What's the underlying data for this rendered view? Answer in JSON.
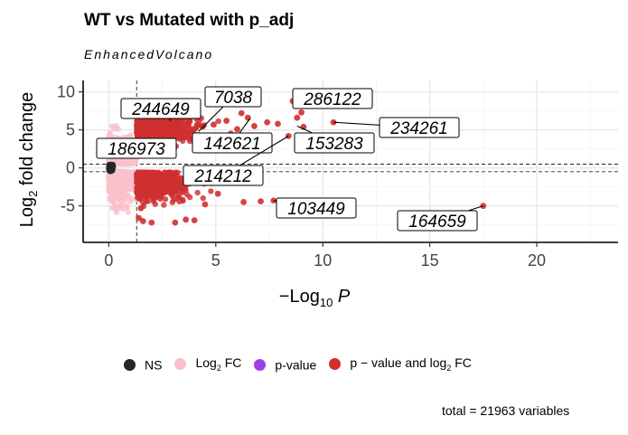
{
  "title": "WT vs Mutated with p_adj",
  "subtitle": "EnhancedVolcano",
  "caption": "total = 21963 variables",
  "legend": {
    "items": [
      {
        "label": "NS",
        "sub": "",
        "suffix": "",
        "color": "#262626"
      },
      {
        "label": "Log",
        "sub": "2",
        "suffix": " FC",
        "color": "#f9c0cb"
      },
      {
        "label": "p-value",
        "sub": "",
        "suffix": "",
        "color": "#9f3ee6"
      },
      {
        "label": "p − value and log",
        "sub": "2",
        "suffix": " FC",
        "color": "#d02f2f"
      }
    ]
  },
  "chart_data": {
    "type": "scatter",
    "xlabel": {
      "text": "−Log",
      "sub": "10",
      "suffix": " P"
    },
    "ylabel": {
      "text": "Log",
      "sub": "2",
      "suffix": " fold change"
    },
    "xlim": [
      -1.2,
      23.8
    ],
    "ylim": [
      -9.8,
      11.5
    ],
    "xticks": [
      0,
      5,
      10,
      15,
      20
    ],
    "yticks": [
      -5,
      0,
      5,
      10
    ],
    "grid": true,
    "p_cutoff": 1.3,
    "fc_cutoff": 0.5,
    "colors": {
      "NS": "#262626",
      "FC": "#f9c0cb",
      "P": "#9f3ee6",
      "FC_P": "#d02f2f"
    },
    "labels": [
      {
        "text": "244649",
        "x": 2.9,
        "y": 6.2
      },
      {
        "text": "7038",
        "x": 4.2,
        "y": 4.8
      },
      {
        "text": "286122",
        "x": 8.6,
        "y": 8.8
      },
      {
        "text": "234261",
        "x": 10.5,
        "y": 6.0
      },
      {
        "text": "186973",
        "x": 1.5,
        "y": 1.5
      },
      {
        "text": "142621",
        "x": 6.6,
        "y": 6.5
      },
      {
        "text": "153283",
        "x": 8.8,
        "y": 5.5
      },
      {
        "text": "214212",
        "x": 8.4,
        "y": 4.2
      },
      {
        "text": "103449",
        "x": 7.7,
        "y": -4.3
      },
      {
        "text": "164659",
        "x": 17.5,
        "y": -5.0
      }
    ],
    "points_fc_p": [
      [
        8.6,
        8.8
      ],
      [
        9.0,
        7.3
      ],
      [
        10.5,
        6.0
      ],
      [
        8.8,
        6.6
      ],
      [
        8.4,
        4.2
      ],
      [
        9.1,
        5.4
      ],
      [
        7.7,
        -4.3
      ],
      [
        7.1,
        -4.4
      ],
      [
        6.3,
        -4.5
      ],
      [
        17.5,
        -5.0
      ],
      [
        4.5,
        -4.8
      ],
      [
        3.6,
        -6.8
      ],
      [
        3.1,
        -7.2
      ],
      [
        2.0,
        -7.2
      ],
      [
        4.0,
        -6.9
      ],
      [
        1.5,
        -5.3
      ],
      [
        1.4,
        -6.6
      ],
      [
        1.6,
        -7.0
      ],
      [
        5.1,
        -3.4
      ],
      [
        4.3,
        -1.1
      ],
      [
        4.8,
        -2.0
      ],
      [
        5.5,
        6.2
      ],
      [
        6.5,
        6.6
      ],
      [
        7.4,
        6.0
      ],
      [
        6.2,
        7.2
      ],
      [
        7.9,
        5.8
      ],
      [
        6.0,
        5.1
      ],
      [
        5.7,
        4.5
      ],
      [
        4.9,
        5.7
      ],
      [
        6.8,
        5.5
      ],
      [
        2.0,
        3.5
      ],
      [
        3.5,
        4.2
      ],
      [
        2.6,
        2.7
      ]
    ]
  }
}
